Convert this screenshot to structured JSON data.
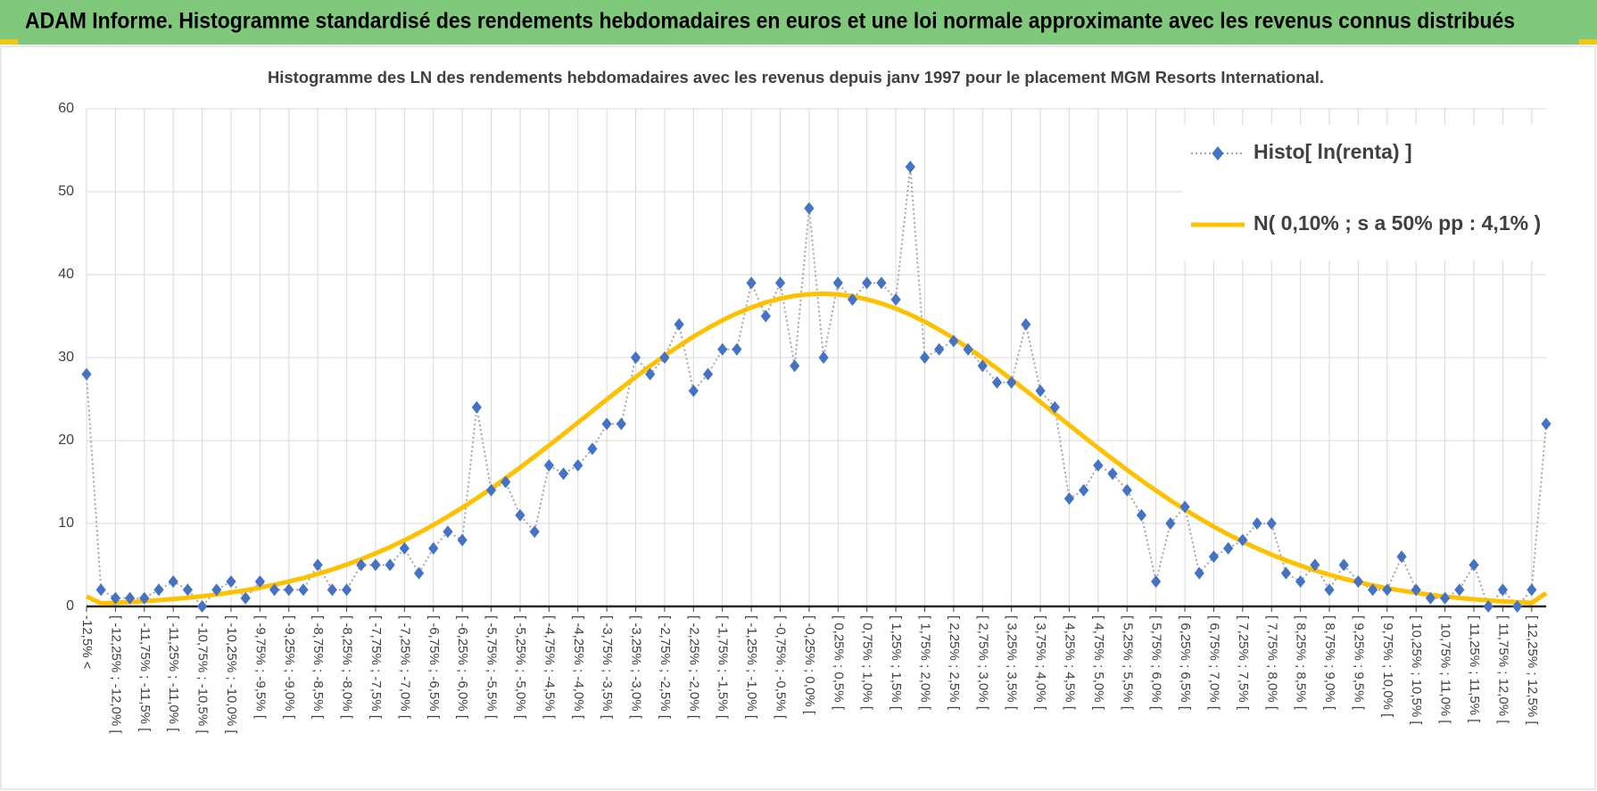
{
  "header": "ADAM Informe. Histogramme standardisé des rendements hebdomadaires en euros et une loi normale approximante avec les revenus connus distribués",
  "chart_data": {
    "type": "line",
    "title": "Histogramme des LN des rendements hebdomadaires avec les revenus depuis janv 1997 pour le placement MGM Resorts International.",
    "categories": [
      "-12,5% <",
      null,
      "[ -12,25% ; -12,0% [",
      null,
      "[ -11,75% ; -11,5% [",
      null,
      "[ -11,25% ; -11,0% [",
      null,
      "[ -10,75% ; -10,5% [",
      null,
      "[ -10,25% ; -10,0% [",
      null,
      "[ -9,75% ; -9,5% [",
      null,
      "[ -9,25% ; -9,0% [",
      null,
      "[ -8,75% ; -8,5% [",
      null,
      "[ -8,25% ; -8,0% [",
      null,
      "[ -7,75% ; -7,5% [",
      null,
      "[ -7,25% ; -7,0% [",
      null,
      "[ -6,75% ; -6,5% [",
      null,
      "[ -6,25% ; -6,0% [",
      null,
      "[ -5,75% ; -5,5% [",
      null,
      "[ -5,25% ; -5,0% [",
      null,
      "[ -4,75% ; -4,5% [",
      null,
      "[ -4,25% ; -4,0% [",
      null,
      "[ -3,75% ; -3,5% [",
      null,
      "[ -3,25% ; -3,0% [",
      null,
      "[ -2,75% ; -2,5% [",
      null,
      "[ -2,25% ; -2,0% [",
      null,
      "[ -1,75% ; -1,5% [",
      null,
      "[ -1,25% ; -1,0% [",
      null,
      "[ -0,75% ; -0,5% [",
      null,
      "[ -0,25% ; 0,0% [",
      null,
      "[ 0,25% ; 0,5% [",
      null,
      "[ 0,75% ; 1,0% [",
      null,
      "[ 1,25% ; 1,5% [",
      null,
      "[ 1,75% ; 2,0% [",
      null,
      "[ 2,25% ; 2,5% [",
      null,
      "[ 2,75% ; 3,0% [",
      null,
      "[ 3,25% ; 3,5% [",
      null,
      "[ 3,75% ; 4,0% [",
      null,
      "[ 4,25% ; 4,5% [",
      null,
      "[ 4,75% ; 5,0% [",
      null,
      "[ 5,25% ; 5,5% [",
      null,
      "[ 5,75% ; 6,0% [",
      null,
      "[ 6,25% ; 6,5% [",
      null,
      "[ 6,75% ; 7,0% [",
      null,
      "[ 7,25% ; 7,5% [",
      null,
      "[ 7,75% ; 8,0% [",
      null,
      "[ 8,25% ; 8,5% [",
      null,
      "[ 8,75% ; 9,0% [",
      null,
      "[ 9,25% ; 9,5% [",
      null,
      "[ 9,75% ; 10,0% [",
      null,
      "[ 10,25% ; 10,5% [",
      null,
      "[ 10,75% ; 11,0% [",
      null,
      "[ 11,25% ; 11,5% [",
      null,
      "[ 11,75% ; 12,0% [",
      null,
      "[ 12,25% ; 12,5% [",
      null
    ],
    "series": [
      {
        "name": "Histo[ ln(renta) ]",
        "color": "#4472c4",
        "marker": "diamond",
        "line_color": "#a6a6a6",
        "line_style": "dotted",
        "values": [
          28,
          2,
          1,
          1,
          1,
          2,
          3,
          2,
          0,
          2,
          3,
          1,
          3,
          2,
          2,
          2,
          5,
          2,
          2,
          5,
          5,
          5,
          7,
          4,
          7,
          9,
          8,
          24,
          14,
          15,
          11,
          9,
          17,
          16,
          17,
          19,
          22,
          22,
          30,
          28,
          30,
          34,
          26,
          28,
          31,
          31,
          39,
          35,
          39,
          29,
          48,
          30,
          39,
          37,
          39,
          39,
          37,
          53,
          30,
          31,
          32,
          31,
          29,
          27,
          27,
          34,
          26,
          24,
          13,
          14,
          17,
          16,
          14,
          11,
          3,
          10,
          12,
          4,
          6,
          7,
          8,
          10,
          10,
          4,
          3,
          5,
          2,
          5,
          3,
          2,
          2,
          6,
          2,
          1,
          1,
          2,
          5,
          0,
          2,
          0,
          2,
          22
        ]
      },
      {
        "name": "N( 0,10% ; s a 50% pp : 4,1% )",
        "color": "#ffc000",
        "marker": null,
        "line_style": "solid",
        "values": [
          1.2,
          0.37,
          0.44,
          0.53,
          0.63,
          0.75,
          0.89,
          1.05,
          1.23,
          1.44,
          1.68,
          1.95,
          2.26,
          2.61,
          3.0,
          3.43,
          3.92,
          4.45,
          5.04,
          5.69,
          6.39,
          7.15,
          7.98,
          8.87,
          9.82,
          10.84,
          11.91,
          13.04,
          14.22,
          15.46,
          16.74,
          18.06,
          19.41,
          20.77,
          22.17,
          23.56,
          24.96,
          26.32,
          27.67,
          28.99,
          30.24,
          31.4,
          32.54,
          33.55,
          34.5,
          35.33,
          36.04,
          36.65,
          37.12,
          37.45,
          37.64,
          37.7,
          37.62,
          37.39,
          37.03,
          36.54,
          35.92,
          35.18,
          34.33,
          33.37,
          32.32,
          31.18,
          29.97,
          28.7,
          27.38,
          26.04,
          24.64,
          23.26,
          21.86,
          20.48,
          19.11,
          17.77,
          16.45,
          15.19,
          13.97,
          12.79,
          11.68,
          10.62,
          9.62,
          8.68,
          7.81,
          6.99,
          6.24,
          5.55,
          4.92,
          4.34,
          3.82,
          3.34,
          2.92,
          2.54,
          2.2,
          1.9,
          1.63,
          1.4,
          1.19,
          1.02,
          0.86,
          0.73,
          0.61,
          0.51,
          0.43,
          1.6
        ]
      }
    ],
    "ylim": [
      0,
      60
    ],
    "yticks": [
      0,
      10,
      20,
      30,
      40,
      50,
      60
    ],
    "grid": true,
    "legend": "upper right"
  }
}
